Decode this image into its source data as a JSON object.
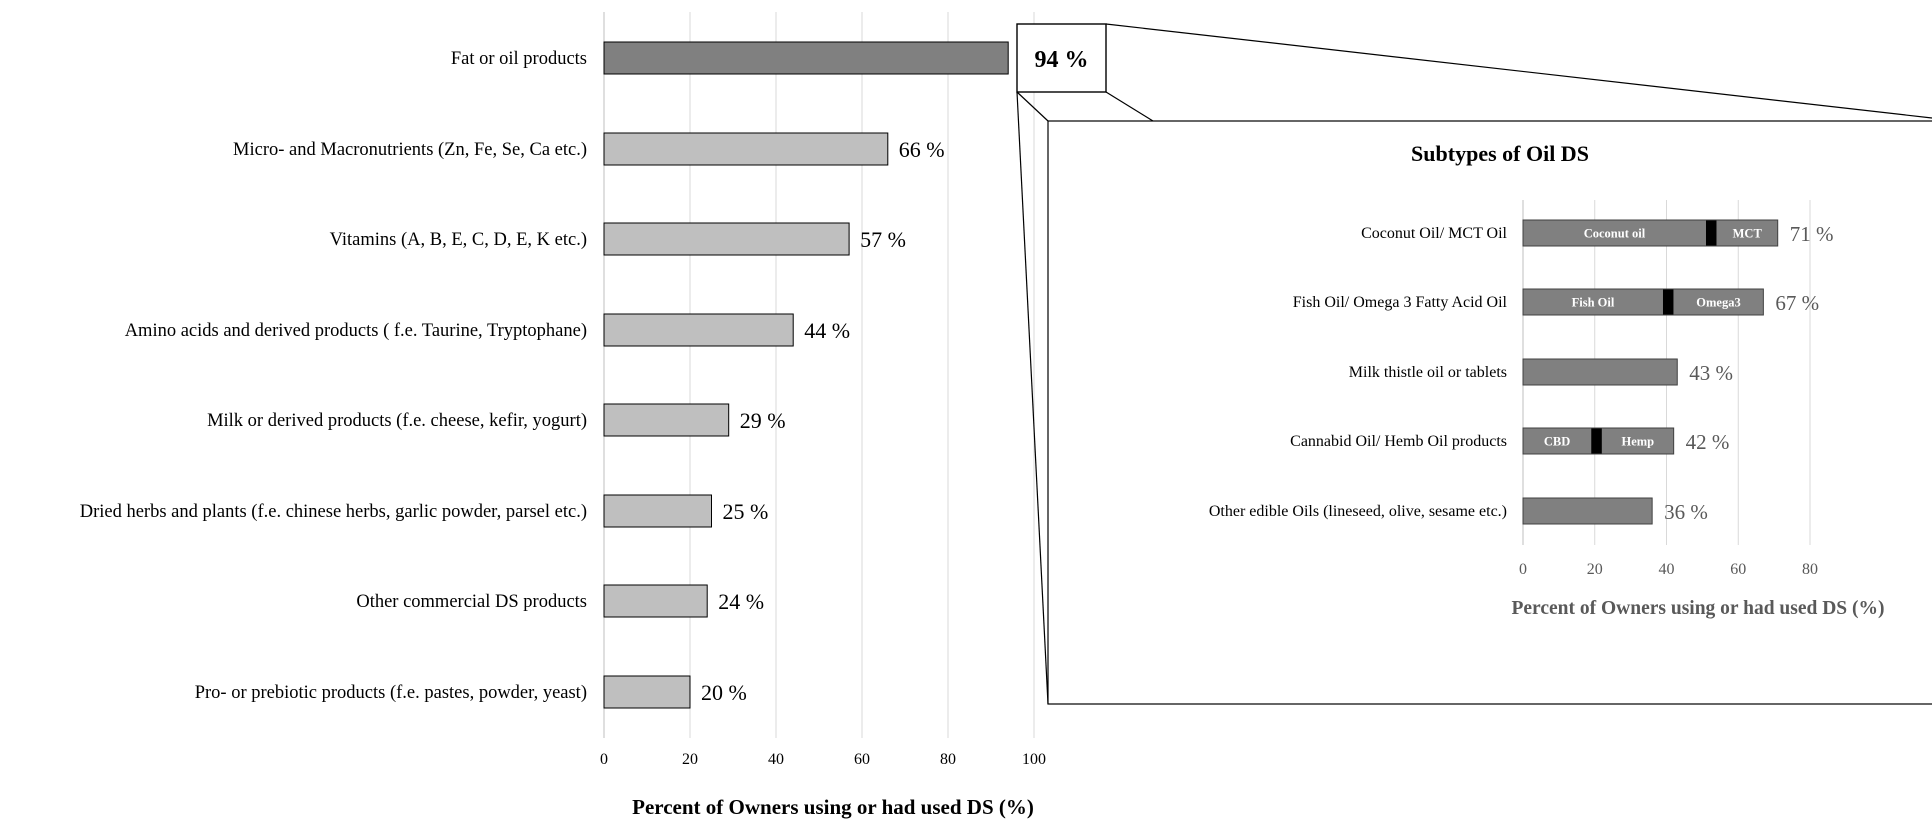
{
  "chart_data": [
    {
      "type": "bar",
      "orientation": "horizontal",
      "categories": [
        "Fat or oil products",
        "Micro- and Macronutrients (Zn, Fe, Se, Ca etc.)",
        "Vitamins (A, B, E, C, D, E, K etc.)",
        "Amino acids and derived products ( f.e. Taurine, Tryptophane)",
        "Milk or derived products (f.e. cheese, kefir, yogurt)",
        "Dried herbs and plants (f.e. chinese herbs, garlic powder, parsel etc.)",
        "Other commercial DS products",
        "Pro- or prebiotic products (f.e. pastes, powder, yeast)"
      ],
      "values": [
        94,
        66,
        57,
        44,
        29,
        25,
        24,
        20
      ],
      "value_labels": [
        "94 %",
        "66 %",
        "57 %",
        "44 %",
        "29 %",
        "25 %",
        "24 %",
        "20 %"
      ],
      "title": "",
      "xlabel": "Percent of Owners using or had used DS (%)",
      "xticks": [
        0,
        20,
        40,
        60,
        80,
        100
      ],
      "xlim": [
        0,
        100
      ],
      "grid": true,
      "colors": {
        "highlight": "#808080",
        "bar": "#bfbfbf",
        "outline": "#000000",
        "grid": "#d9d9d9"
      }
    },
    {
      "type": "bar",
      "orientation": "horizontal",
      "stacked_segments": true,
      "title": "Subtypes of Oil DS",
      "categories": [
        "Coconut Oil/ MCT Oil",
        "Fish Oil/ Omega 3 Fatty Acid Oil",
        "Milk thistle oil or tablets",
        "Cannabid Oil/ Hemb Oil products",
        "Other edible Oils (lineseed, olive, sesame etc.)"
      ],
      "bars": [
        {
          "segments": [
            {
              "label": "Coconut oil",
              "value": 51
            },
            {
              "label": "",
              "value": 3,
              "color": "#000000"
            },
            {
              "label": "MCT",
              "value": 17
            }
          ]
        },
        {
          "segments": [
            {
              "label": "Fish Oil",
              "value": 39
            },
            {
              "label": "",
              "value": 3,
              "color": "#000000"
            },
            {
              "label": "Omega3",
              "value": 25
            }
          ]
        },
        {
          "segments": [
            {
              "label": "",
              "value": 43
            }
          ]
        },
        {
          "segments": [
            {
              "label": "CBD",
              "value": 19
            },
            {
              "label": "",
              "value": 3,
              "color": "#000000"
            },
            {
              "label": "Hemp",
              "value": 20
            }
          ]
        },
        {
          "segments": [
            {
              "label": "",
              "value": 36
            }
          ]
        }
      ],
      "values": [
        71,
        67,
        43,
        42,
        36
      ],
      "value_labels": [
        "71 %",
        "67 %",
        "43 %",
        "42 %",
        "36 %"
      ],
      "xlabel": "Percent of Owners using or had used DS (%)",
      "xticks": [
        0,
        20,
        40,
        60,
        80
      ],
      "xlim": [
        0,
        80
      ],
      "grid": true,
      "colors": {
        "bar": "#808080",
        "separator": "#000000",
        "axis_text": "#595959",
        "grid": "#d9d9d9"
      }
    }
  ]
}
